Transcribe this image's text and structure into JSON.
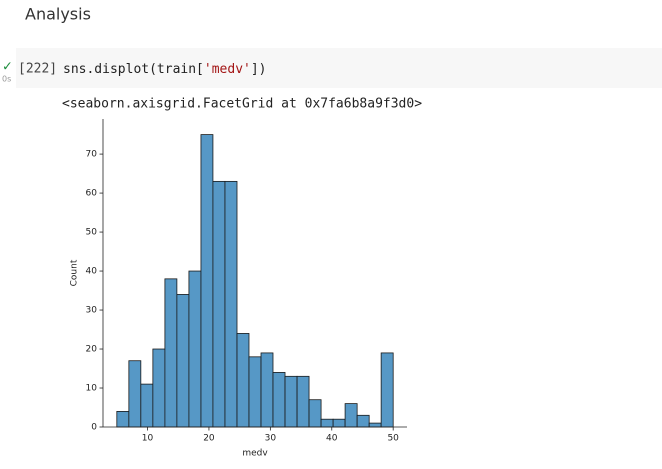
{
  "header": {
    "title": "Analysis"
  },
  "cell": {
    "status_icon": "✓",
    "duration": "0s",
    "prompt": "[222]",
    "code": [
      "sns.displot(train[",
      "'medv'",
      "])"
    ],
    "output": "<seaborn.axisgrid.FacetGrid at 0x7fa6b8a9f3d0>"
  },
  "chart_data": {
    "type": "histogram",
    "xlabel": "medv",
    "ylabel": "Count",
    "bins": [
      5,
      6.96,
      8.91,
      10.87,
      12.83,
      14.78,
      16.74,
      18.7,
      20.65,
      22.61,
      24.57,
      26.52,
      28.48,
      30.43,
      32.39,
      34.35,
      36.3,
      38.26,
      40.22,
      42.17,
      44.13,
      46.09,
      48.04,
      50
    ],
    "values": [
      4,
      17,
      11,
      20,
      38,
      34,
      40,
      75,
      63,
      63,
      24,
      18,
      19,
      14,
      13,
      13,
      7,
      2,
      2,
      6,
      3,
      1,
      19
    ],
    "color": "#5698c6",
    "edgecolor": "#1a1a1a",
    "xlim": [
      2.75,
      52.25
    ],
    "ylim": [
      0,
      79
    ],
    "xticks": [
      10,
      20,
      30,
      40,
      50
    ],
    "yticks": [
      0,
      10,
      20,
      30,
      40,
      50,
      60,
      70
    ],
    "grid": false
  }
}
